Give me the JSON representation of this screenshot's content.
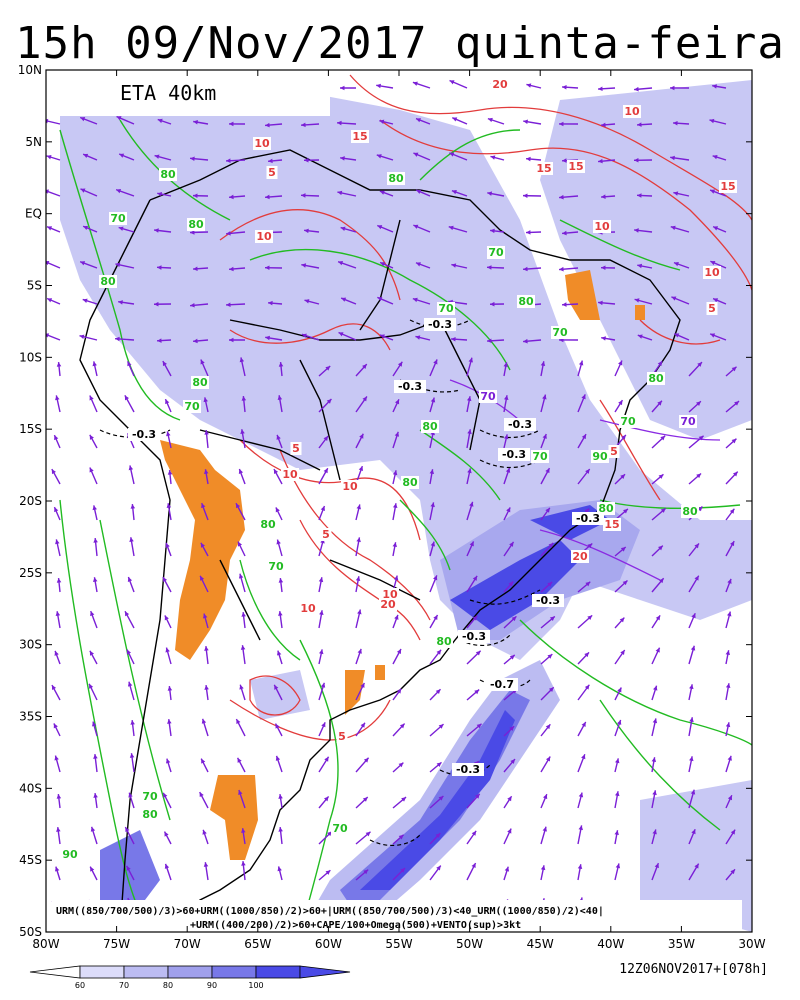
{
  "title": "15h 09/Nov/2017 quinta-feira",
  "model_label": "ETA 40km",
  "formula_line1": "URM((850/700/500)/3)>60+URM((1000/850)/2)>60+|URM((850/700/500)/3)<40_URM((1000/850)/2)<40|",
  "formula_line2": "+URM((400/200)/2)>60+CAPE/100+Omega(500)+VENTO(sup)>3kt",
  "run_label": "12Z06NOV2017+[078h]",
  "lat_ticks": [
    "10N",
    "5N",
    "EQ",
    "5S",
    "10S",
    "15S",
    "20S",
    "25S",
    "30S",
    "35S",
    "40S",
    "45S",
    "50S"
  ],
  "lon_ticks": [
    "80W",
    "75W",
    "70W",
    "65W",
    "60W",
    "55W",
    "50W",
    "45W",
    "40W",
    "35W",
    "30W"
  ],
  "colorbar": {
    "labels": [
      "60",
      "70",
      "80",
      "90",
      "100"
    ],
    "colors": [
      "#dcdcfa",
      "#bcbcf2",
      "#a0a0ec",
      "#7878e8",
      "#4a4ae6"
    ]
  },
  "contour_labels": {
    "green": [
      "80",
      "70",
      "80",
      "80",
      "80",
      "70",
      "80",
      "70",
      "70",
      "80",
      "70",
      "80",
      "70",
      "80",
      "90",
      "80",
      "70",
      "80",
      "70",
      "80",
      "90",
      "80",
      "70",
      "70",
      "80",
      "80"
    ],
    "red": [
      "10",
      "5",
      "15",
      "20",
      "10",
      "10",
      "15",
      "15",
      "15",
      "10",
      "10",
      "5",
      "10",
      "5",
      "10",
      "10",
      "5",
      "5",
      "10",
      "20",
      "15",
      "5",
      "20"
    ],
    "black": [
      "-0.3",
      "-0.3",
      "-0.3",
      "-0.3",
      "-0.3",
      "-0.3",
      "-0.3",
      "-0.3",
      "-0.7",
      "-0.3"
    ],
    "purple": [
      "70",
      "70"
    ]
  },
  "colors": {
    "rh_light": "#c8c8f4",
    "rh_mid": "#a8a8ee",
    "rh_dark": "#5a5ae8",
    "cape": "#f08c28",
    "green_contour": "#22bb22",
    "red_contour": "#e23c3c",
    "wind_vector": "#7a1fd6"
  }
}
